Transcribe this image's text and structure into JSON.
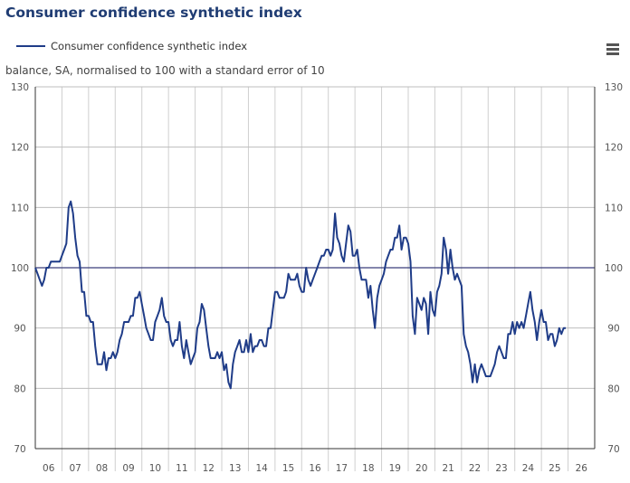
{
  "header": {
    "title": "Consumer confidence synthetic index",
    "subtitle": "balance, SA, normalised to 100 with a standard error of 10",
    "menu_icon": "hamburger-menu-icon"
  },
  "chart_data": {
    "type": "line",
    "title": "Consumer confidence synthetic index",
    "ylabel": "balance, SA, normalised to 100 with a standard error of 10",
    "xlabel": "",
    "ylim": [
      70,
      130
    ],
    "yticks": [
      70,
      80,
      90,
      100,
      110,
      120,
      130
    ],
    "xlim": [
      2006,
      2027
    ],
    "xtick_labels": [
      "06",
      "07",
      "08",
      "09",
      "10",
      "11",
      "12",
      "13",
      "14",
      "15",
      "16",
      "17",
      "18",
      "19",
      "20",
      "21",
      "22",
      "23",
      "24",
      "25",
      "26"
    ],
    "reference_line": 100,
    "grid": true,
    "legend": {
      "position": "top-left",
      "entries": [
        "Consumer confidence synthetic index"
      ]
    },
    "series": [
      {
        "name": "Consumer confidence synthetic index",
        "color": "#1f3c88",
        "start": "2006-01",
        "frequency": "monthly",
        "values": [
          100,
          99,
          98,
          97,
          98,
          100,
          100,
          101,
          101,
          101,
          101,
          101,
          102,
          103,
          104,
          110,
          111,
          109,
          105,
          102,
          101,
          96,
          96,
          92,
          92,
          91,
          91,
          87,
          84,
          84,
          84,
          86,
          83,
          85,
          85,
          86,
          85,
          86,
          88,
          89,
          91,
          91,
          91,
          92,
          92,
          95,
          95,
          96,
          94,
          92,
          90,
          89,
          88,
          88,
          91,
          92,
          93,
          95,
          92,
          91,
          91,
          88,
          87,
          88,
          88,
          91,
          87,
          85,
          88,
          86,
          84,
          85,
          86,
          90,
          91,
          94,
          93,
          90,
          87,
          85,
          85,
          85,
          86,
          85,
          86,
          83,
          84,
          81,
          80,
          84,
          86,
          87,
          88,
          86,
          86,
          88,
          86,
          89,
          86,
          87,
          87,
          88,
          88,
          87,
          87,
          90,
          90,
          93,
          96,
          96,
          95,
          95,
          95,
          96,
          99,
          98,
          98,
          98,
          99,
          97,
          96,
          96,
          100,
          98,
          97,
          98,
          99,
          100,
          101,
          102,
          102,
          103,
          103,
          102,
          103,
          109,
          105,
          104,
          102,
          101,
          104,
          107,
          106,
          102,
          102,
          103,
          100,
          98,
          98,
          98,
          95,
          97,
          93,
          90,
          95,
          97,
          98,
          99,
          101,
          102,
          103,
          103,
          105,
          105,
          107,
          103,
          105,
          105,
          104,
          101,
          92,
          89,
          95,
          94,
          93,
          95,
          94,
          89,
          96,
          93,
          92,
          96,
          97,
          99,
          105,
          103,
          99,
          103,
          100,
          98,
          99,
          98,
          97,
          89,
          87,
          86,
          84,
          81,
          84,
          81,
          83,
          84,
          83,
          82,
          82,
          82,
          83,
          84,
          86,
          87,
          86,
          85,
          85,
          89,
          89,
          91,
          89,
          91,
          90,
          91,
          90,
          92,
          94,
          96,
          93,
          91,
          88,
          91,
          93,
          91,
          91,
          88,
          89,
          89,
          87,
          88,
          90,
          89,
          90,
          90
        ]
      }
    ]
  }
}
